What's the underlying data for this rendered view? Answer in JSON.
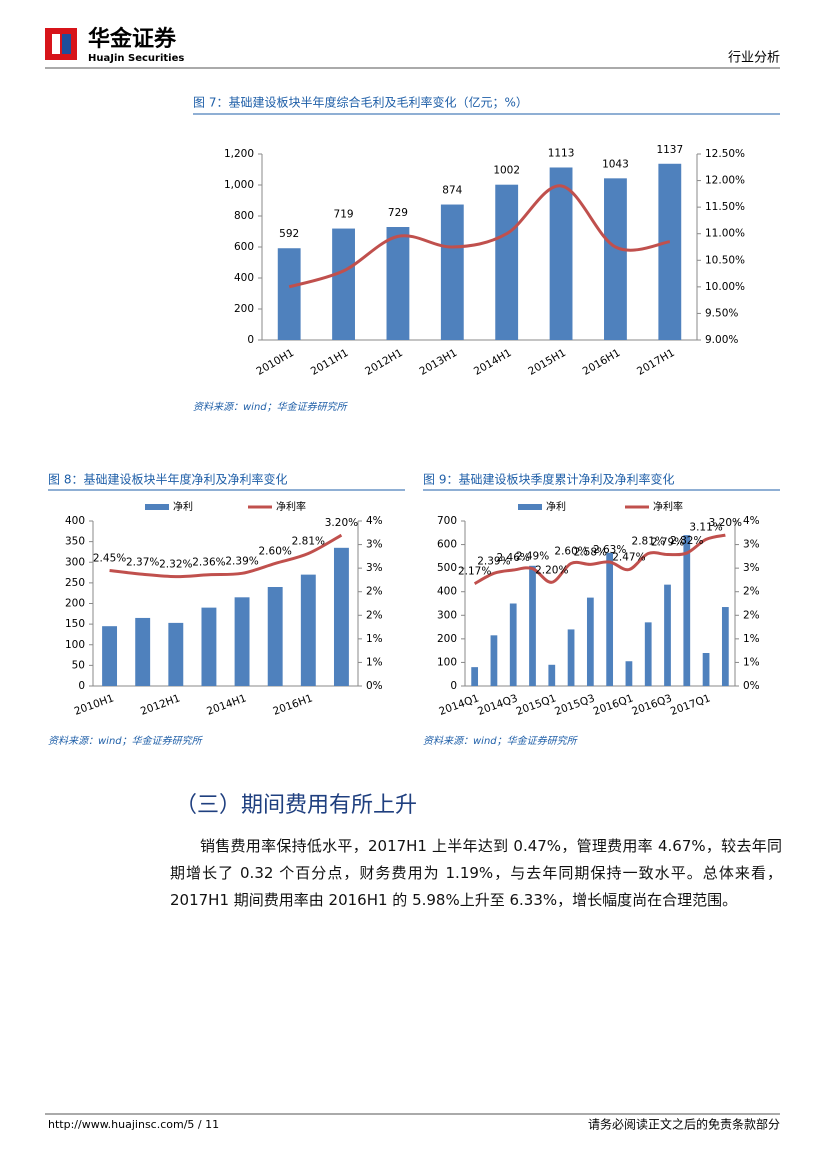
{
  "header": {
    "brand": "华金证券",
    "brand_en": "HuaJin Securities",
    "section": "行业分析"
  },
  "figures": [
    {
      "title": "图 7：基础建设板块半年度综合毛利及毛利率变化（亿元；%）",
      "source": "资料来源：wind；华金证券研究所"
    },
    {
      "title": "图 8：基础建设板块半年度净利及净利率变化",
      "source": "资料来源：wind；华金证券研究所"
    },
    {
      "title": "图 9：基础建设板块季度累计净利及净利率变化",
      "source": "资料来源：wind；华金证券研究所"
    }
  ],
  "chart_data": [
    {
      "type": "bar_line",
      "categories": [
        "2010H1",
        "2011H1",
        "2012H1",
        "2013H1",
        "2014H1",
        "2015H1",
        "2016H1",
        "2017H1"
      ],
      "series": [
        {
          "type": "bar",
          "color": "#4f81bd",
          "show_values": true,
          "values": [
            592,
            719,
            729,
            874,
            1002,
            1113,
            1043,
            1137
          ]
        },
        {
          "type": "line",
          "axis": "y2",
          "color": "#c0504d",
          "values": [
            10.0,
            10.3,
            10.95,
            10.75,
            11.0,
            11.9,
            10.75,
            10.85
          ]
        }
      ],
      "ylim": [
        0,
        1200
      ],
      "yticks": [
        0,
        200,
        400,
        600,
        800,
        {
          "value": 1000,
          "label": "1,000"
        },
        {
          "value": 1200,
          "label": "1,200"
        }
      ],
      "y2lim": [
        9,
        12.5
      ],
      "y2ticks": [
        {
          "value": 9,
          "label": "9.00%"
        },
        {
          "value": 9.5,
          "label": "9.50%"
        },
        {
          "value": 10,
          "label": "10.00%"
        },
        {
          "value": 10.5,
          "label": "10.50%"
        },
        {
          "value": 11,
          "label": "11.00%"
        },
        {
          "value": 11.5,
          "label": "11.50%"
        },
        {
          "value": 12,
          "label": "12.00%"
        },
        {
          "value": 12.5,
          "label": "12.50%"
        }
      ]
    },
    {
      "type": "bar_line",
      "categories": [
        "2010H1",
        null,
        "2012H1",
        null,
        "2014H1",
        null,
        "2016H1",
        null
      ],
      "series": [
        {
          "type": "bar",
          "name": "净利",
          "color": "#4f81bd",
          "values": [
            145,
            165,
            153,
            190,
            215,
            240,
            270,
            335
          ]
        },
        {
          "type": "line",
          "name": "净利率",
          "axis": "y2",
          "color": "#c0504d",
          "values": [
            2.45,
            2.37,
            2.32,
            2.36,
            2.39,
            2.6,
            2.81,
            3.2
          ],
          "value_labels": [
            "2.45%",
            "2.37%",
            "2.32%",
            "2.36%",
            "2.39%",
            "2.60%",
            "2.81%",
            "3.20%"
          ]
        }
      ],
      "legend": "top",
      "ylim": [
        0,
        400
      ],
      "yticks": [
        0,
        50,
        100,
        150,
        200,
        250,
        300,
        350,
        400
      ],
      "y2lim": [
        0,
        3.5
      ],
      "y2ticks": [
        {
          "value": 0,
          "label": "0%"
        },
        {
          "value": 0.5,
          "label": "1%"
        },
        {
          "value": 1,
          "label": "1%"
        },
        {
          "value": 1.5,
          "label": "2%"
        },
        {
          "value": 2,
          "label": "2%"
        },
        {
          "value": 2.5,
          "label": "3%"
        },
        {
          "value": 3,
          "label": "3%"
        },
        {
          "value": 3.5,
          "label": "4%"
        }
      ]
    },
    {
      "type": "bar_line",
      "categories": [
        "2014Q1",
        null,
        "2014Q3",
        null,
        "2015Q1",
        null,
        "2015Q3",
        null,
        "2016Q1",
        null,
        "2016Q3",
        null,
        "2017Q1",
        null
      ],
      "series": [
        {
          "type": "bar",
          "name": "净利",
          "color": "#4f81bd",
          "values": [
            80,
            215,
            350,
            510,
            90,
            240,
            375,
            565,
            105,
            270,
            430,
            640,
            140,
            335
          ]
        },
        {
          "type": "line",
          "name": "净利率",
          "axis": "y2",
          "color": "#c0504d",
          "values": [
            2.17,
            2.39,
            2.46,
            2.49,
            2.2,
            2.6,
            2.58,
            2.63,
            2.47,
            2.81,
            2.79,
            2.82,
            3.11,
            3.2
          ],
          "value_labels": [
            "2.17%",
            "2.39%",
            "2.46%",
            "2.49%",
            "2.20%",
            "2.60%",
            "2.58%",
            "2.63%",
            "2.47%",
            "2.81%",
            "2.79%",
            "2.82%",
            "3.11%",
            "3.20%"
          ]
        }
      ],
      "legend": "top",
      "ylim": [
        0,
        700
      ],
      "yticks": [
        0,
        100,
        200,
        300,
        400,
        500,
        600,
        700
      ],
      "y2lim": [
        0,
        3.5
      ],
      "y2ticks": [
        {
          "value": 0,
          "label": "0%"
        },
        {
          "value": 0.5,
          "label": "1%"
        },
        {
          "value": 1,
          "label": "1%"
        },
        {
          "value": 1.5,
          "label": "2%"
        },
        {
          "value": 2,
          "label": "2%"
        },
        {
          "value": 2.5,
          "label": "3%"
        },
        {
          "value": 3,
          "label": "3%"
        },
        {
          "value": 3.5,
          "label": "4%"
        }
      ]
    }
  ],
  "section": {
    "heading": "（三）期间费用有所上升",
    "paragraph": "销售费用率保持低水平，2017H1 上半年达到 0.47%，管理费用率 4.67%，较去年同期增长了 0.32 个百分点，财务费用为 1.19%，与去年同期保持一致水平。总体来看，2017H1 期间费用率由 2016H1 的 5.98%上升至 6.33%，增长幅度尚在合理范围。"
  },
  "footer": {
    "url": "http://www.huajinsc.com/5 / 11",
    "disclaimer": "请务必阅读正文之后的免责条款部分"
  }
}
